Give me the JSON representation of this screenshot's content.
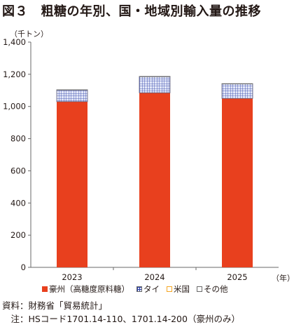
{
  "title": "図３　粗糖の年別、国・地域別輸入量の推移",
  "unit_label": "（千トン）",
  "x_unit_label": "（年）",
  "notes": [
    "資料：財務省「貿易統計」",
    "　注：HSコード1701.14-110、1701.14-200（豪州のみ）"
  ],
  "colors": {
    "australia": "#e8401e",
    "thailand_fill": "#e4e8f8",
    "thailand_grid": "#2b3fa8",
    "usa": "#f5a623",
    "others": "#ffffff",
    "axis": "#6a6a6a",
    "text": "#231815"
  },
  "chart_data": {
    "type": "bar",
    "stacked": true,
    "categories": [
      "2023",
      "2024",
      "2025"
    ],
    "ylim": [
      0,
      1400
    ],
    "yticks": [
      0,
      200,
      400,
      600,
      800,
      1000,
      1200,
      1400
    ],
    "ytick_labels": [
      "0",
      "200",
      "400",
      "600",
      "800",
      "1,000",
      "1,200",
      "1,400"
    ],
    "ylabel": "（千トン）",
    "xlabel": "（年）",
    "grid": false,
    "legend_position": "bottom",
    "series": [
      {
        "name": "豪州（高糖度原料糖）",
        "values": [
          1030,
          1085,
          1050
        ],
        "pattern": "solid",
        "color_key": "australia"
      },
      {
        "name": "タイ",
        "values": [
          72,
          100,
          90
        ],
        "pattern": "hatch",
        "color_key": "thailand_fill"
      },
      {
        "name": "米国",
        "values": [
          0,
          0,
          0
        ],
        "pattern": "solid",
        "color_key": "usa"
      },
      {
        "name": "その他",
        "values": [
          2,
          2,
          2
        ],
        "pattern": "solid",
        "color_key": "others"
      }
    ]
  }
}
